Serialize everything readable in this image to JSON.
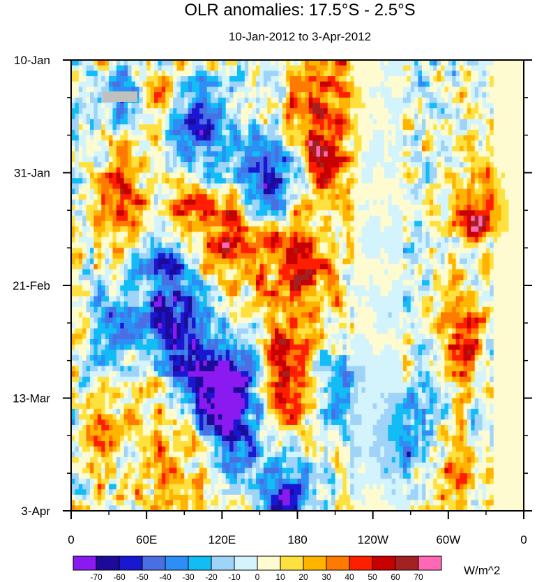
{
  "chart_data": {
    "type": "heatmap",
    "title": "OLR anomalies: 17.5°S - 2.5°S",
    "subtitle": "10-Jan-2012 to 3-Apr-2012",
    "xlabel": "",
    "ylabel": "",
    "x_tick_labels": [
      "0",
      "60E",
      "120E",
      "180",
      "120W",
      "60W",
      "0"
    ],
    "x_tick_values_deg_east": [
      0,
      60,
      120,
      180,
      240,
      300,
      360
    ],
    "y_tick_labels": [
      "10-Jan",
      "31-Jan",
      "21-Feb",
      "13-Mar",
      "3-Apr"
    ],
    "y_tick_values_day_offset": [
      0,
      21,
      42,
      63,
      84
    ],
    "y_range_days": [
      0,
      84
    ],
    "x_range_deg_east": [
      0,
      360
    ],
    "colorbar": {
      "units": "W/m^2",
      "levels": [
        -70,
        -60,
        -50,
        -40,
        -30,
        -20,
        -10,
        0,
        10,
        20,
        30,
        40,
        50,
        60,
        70
      ],
      "colors": [
        "#8b1af0",
        "#1c0a98",
        "#1a17d2",
        "#4a6fe3",
        "#2d8ef5",
        "#12bdf5",
        "#9fd4f8",
        "#d3f4fd",
        "#fffbd0",
        "#fee13f",
        "#ffb400",
        "#ff7a00",
        "#ff1e00",
        "#c70000",
        "#a42121",
        "#ff69b4"
      ]
    },
    "anomaly_features": [
      {
        "lon": 40,
        "day": 6,
        "value": -45,
        "width_deg": 14,
        "height_days": 5
      },
      {
        "lon": 75,
        "day": 5,
        "value": 35,
        "width_deg": 16,
        "height_days": 4
      },
      {
        "lon": 100,
        "day": 14,
        "value": -65,
        "width_deg": 22,
        "height_days": 9
      },
      {
        "lon": 155,
        "day": 22,
        "value": -60,
        "width_deg": 24,
        "height_days": 8
      },
      {
        "lon": 195,
        "day": 5,
        "value": 42,
        "width_deg": 28,
        "height_days": 9
      },
      {
        "lon": 200,
        "day": 17,
        "value": 50,
        "width_deg": 22,
        "height_days": 8
      },
      {
        "lon": 40,
        "day": 27,
        "value": 48,
        "width_deg": 18,
        "height_days": 10
      },
      {
        "lon": 90,
        "day": 26,
        "value": 38,
        "width_deg": 20,
        "height_days": 10
      },
      {
        "lon": 125,
        "day": 32,
        "value": 52,
        "width_deg": 24,
        "height_days": 9
      },
      {
        "lon": 180,
        "day": 37,
        "value": 52,
        "width_deg": 30,
        "height_days": 8
      },
      {
        "lon": 80,
        "day": 45,
        "value": -62,
        "width_deg": 26,
        "height_days": 12
      },
      {
        "lon": 105,
        "day": 60,
        "value": -48,
        "width_deg": 28,
        "height_days": 10
      },
      {
        "lon": 125,
        "day": 65,
        "value": -68,
        "width_deg": 24,
        "height_days": 10
      },
      {
        "lon": 175,
        "day": 60,
        "value": 52,
        "width_deg": 22,
        "height_days": 14
      },
      {
        "lon": 210,
        "day": 62,
        "value": -42,
        "width_deg": 16,
        "height_days": 8
      },
      {
        "lon": 310,
        "day": 52,
        "value": 52,
        "width_deg": 14,
        "height_days": 10
      },
      {
        "lon": 325,
        "day": 28,
        "value": 40,
        "width_deg": 18,
        "height_days": 8
      },
      {
        "lon": 80,
        "day": 72,
        "value": 42,
        "width_deg": 30,
        "height_days": 10
      },
      {
        "lon": 170,
        "day": 80,
        "value": -60,
        "width_deg": 22,
        "height_days": 8
      },
      {
        "lon": 270,
        "day": 70,
        "value": -30,
        "width_deg": 24,
        "height_days": 10
      },
      {
        "lon": 300,
        "day": 78,
        "value": 30,
        "width_deg": 20,
        "height_days": 8
      },
      {
        "lon": 25,
        "day": 72,
        "value": 25,
        "width_deg": 16,
        "height_days": 10
      },
      {
        "lon": 30,
        "day": 48,
        "value": -25,
        "width_deg": 16,
        "height_days": 10
      }
    ],
    "field_seed": 2012
  }
}
